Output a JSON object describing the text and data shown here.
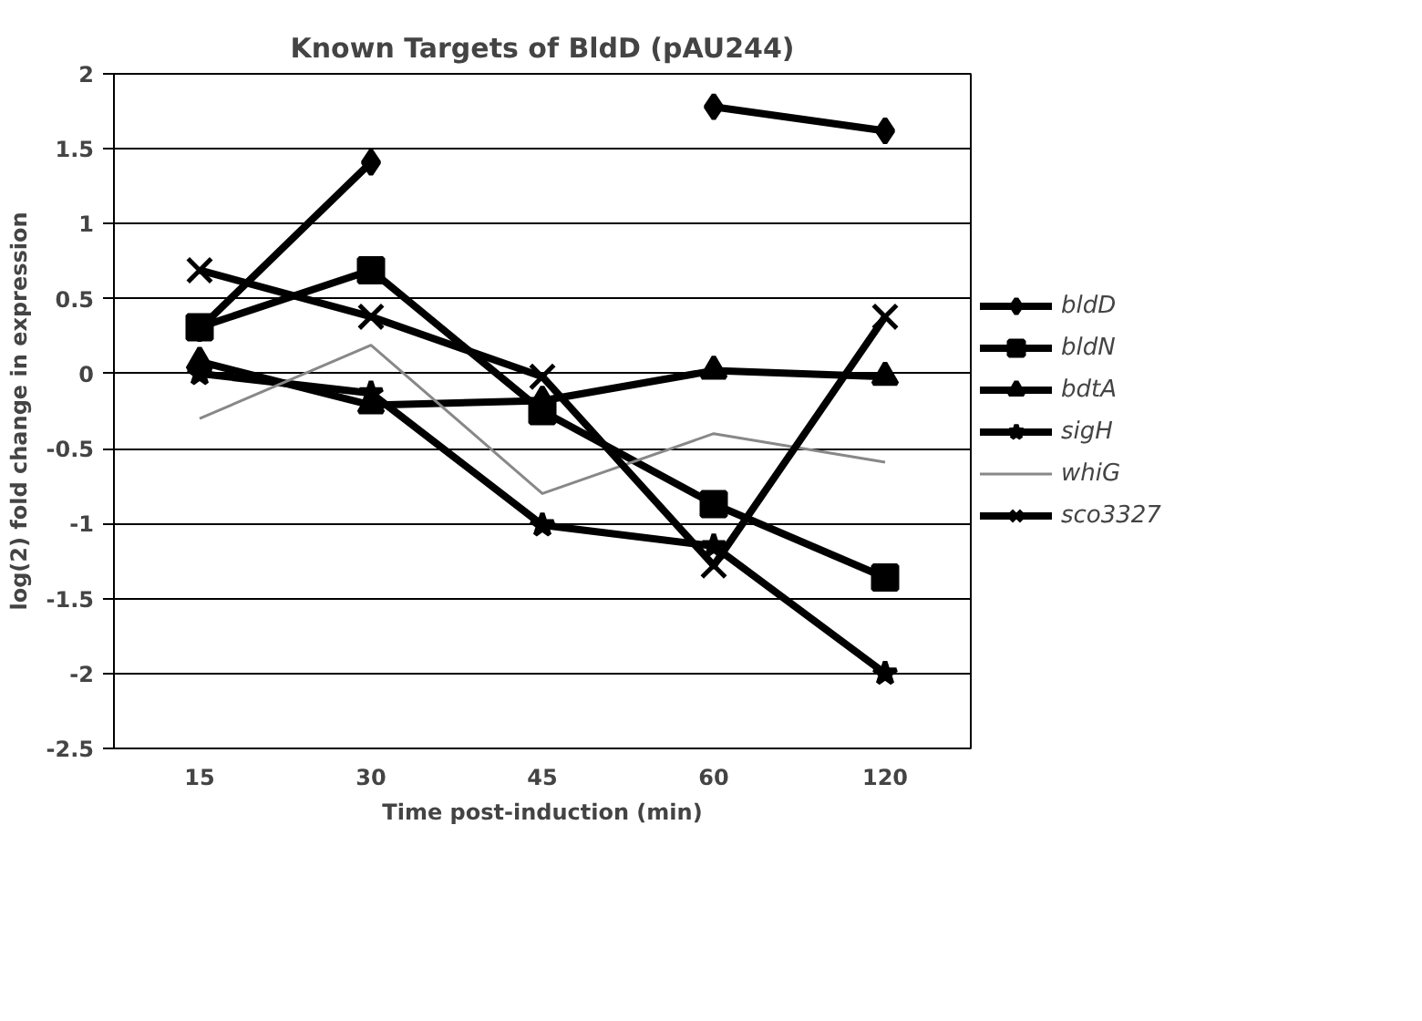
{
  "chart_data": {
    "type": "line",
    "title": "Known Targets of BldD (pAU244)",
    "xlabel": "Time post-induction (min)",
    "ylabel": "log(2) fold change in expression",
    "categories": [
      "15",
      "30",
      "45",
      "60",
      "120"
    ],
    "ylim": [
      -2.5,
      2
    ],
    "yticks": [
      -2.5,
      -2,
      -1.5,
      -1,
      -0.5,
      0,
      0.5,
      1,
      1.5,
      2
    ],
    "grid": "y",
    "legend": "right",
    "line_style": "solid",
    "series": [
      {
        "name": "bldD",
        "color": "#000000",
        "marker": "diamond",
        "values": [
          0.3,
          1.41,
          null,
          1.78,
          1.62
        ]
      },
      {
        "name": "bldN",
        "color": "#000000",
        "marker": "square",
        "values": [
          0.31,
          0.69,
          -0.25,
          -0.87,
          -1.36
        ]
      },
      {
        "name": "bdtA",
        "color": "#000000",
        "marker": "triangle",
        "values": [
          0.08,
          -0.21,
          -0.18,
          0.02,
          -0.02
        ]
      },
      {
        "name": "sigH",
        "color": "#000000",
        "marker": "star",
        "values": [
          0.0,
          -0.13,
          -1.01,
          -1.15,
          -2.0
        ]
      },
      {
        "name": "whiG",
        "color": "#888888",
        "marker": "none",
        "values": [
          -0.3,
          0.19,
          -0.8,
          -0.4,
          -0.59
        ]
      },
      {
        "name": "sco3327",
        "color": "#000000",
        "marker": "cross",
        "values": [
          0.69,
          0.38,
          -0.02,
          -1.28,
          0.38
        ]
      }
    ]
  }
}
